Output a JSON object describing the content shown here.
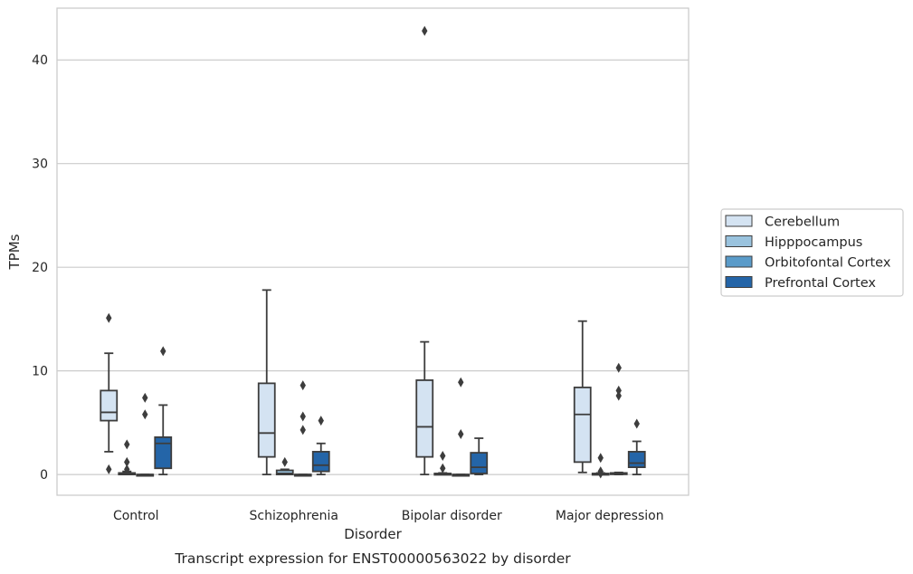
{
  "chart_data": {
    "type": "box",
    "caption": "Transcript expression for ENST00000563022 by disorder",
    "xlabel": "Disorder",
    "ylabel": "TPMs",
    "ylim": [
      -2,
      45
    ],
    "yticks": [
      0,
      10,
      20,
      30,
      40
    ],
    "grid": "horizontal",
    "legend_position": "right",
    "categories": [
      "Control",
      "Schizophrenia",
      "Bipolar disorder",
      "Major depression"
    ],
    "series": [
      {
        "name": "Cerebellum",
        "color": "#d4e3f2",
        "boxes": [
          {
            "whisker_low": 2.2,
            "q1": 5.2,
            "median": 6.0,
            "q3": 8.1,
            "whisker_high": 11.7,
            "outliers": [
              15.1,
              0.5
            ]
          },
          {
            "whisker_low": 0.0,
            "q1": 1.7,
            "median": 4.0,
            "q3": 8.8,
            "whisker_high": 17.8,
            "outliers": []
          },
          {
            "whisker_low": 0.0,
            "q1": 1.7,
            "median": 4.6,
            "q3": 9.1,
            "whisker_high": 12.8,
            "outliers": [
              42.8
            ]
          },
          {
            "whisker_low": 0.2,
            "q1": 1.2,
            "median": 5.8,
            "q3": 8.4,
            "whisker_high": 14.8,
            "outliers": []
          }
        ]
      },
      {
        "name": "Hipppocampus",
        "color": "#9ac3de",
        "boxes": [
          {
            "whisker_low": 0.0,
            "q1": 0.0,
            "median": 0.05,
            "q3": 0.15,
            "whisker_high": 0.3,
            "outliers": [
              2.9,
              1.2,
              0.5
            ]
          },
          {
            "whisker_low": 0.0,
            "q1": 0.0,
            "median": 0.1,
            "q3": 0.4,
            "whisker_high": 0.5,
            "outliers": [
              1.2
            ]
          },
          {
            "whisker_low": 0.0,
            "q1": 0.0,
            "median": 0.05,
            "q3": 0.1,
            "whisker_high": 0.15,
            "outliers": [
              1.8,
              0.6
            ]
          },
          {
            "whisker_low": 0.0,
            "q1": 0.0,
            "median": 0.05,
            "q3": 0.1,
            "whisker_high": 0.15,
            "outliers": [
              1.6,
              0.3,
              0.1
            ]
          }
        ]
      },
      {
        "name": "Orbitofontal Cortex",
        "color": "#5a9bc9",
        "boxes": [
          {
            "whisker_low": 0.0,
            "q1": 0.0,
            "median": 0.0,
            "q3": 0.0,
            "whisker_high": 0.0,
            "outliers": [
              7.4,
              5.8
            ]
          },
          {
            "whisker_low": 0.0,
            "q1": 0.0,
            "median": 0.0,
            "q3": 0.0,
            "whisker_high": 0.0,
            "outliers": [
              8.6,
              5.6,
              4.3
            ]
          },
          {
            "whisker_low": 0.0,
            "q1": 0.0,
            "median": 0.0,
            "q3": 0.0,
            "whisker_high": 0.0,
            "outliers": [
              8.9,
              3.9
            ]
          },
          {
            "whisker_low": 0.0,
            "q1": 0.05,
            "median": 0.1,
            "q3": 0.15,
            "whisker_high": 0.2,
            "outliers": [
              10.3,
              8.1,
              7.6
            ]
          }
        ]
      },
      {
        "name": "Prefrontal Cortex",
        "color": "#2465a8",
        "boxes": [
          {
            "whisker_low": 0.0,
            "q1": 0.6,
            "median": 3.0,
            "q3": 3.6,
            "whisker_high": 6.7,
            "outliers": [
              11.9
            ]
          },
          {
            "whisker_low": 0.0,
            "q1": 0.3,
            "median": 0.9,
            "q3": 2.2,
            "whisker_high": 3.0,
            "outliers": [
              5.2
            ]
          },
          {
            "whisker_low": 0.0,
            "q1": 0.1,
            "median": 0.7,
            "q3": 2.1,
            "whisker_high": 3.5,
            "outliers": []
          },
          {
            "whisker_low": 0.0,
            "q1": 0.7,
            "median": 1.1,
            "q3": 2.2,
            "whisker_high": 3.2,
            "outliers": [
              4.9
            ]
          }
        ]
      }
    ]
  }
}
